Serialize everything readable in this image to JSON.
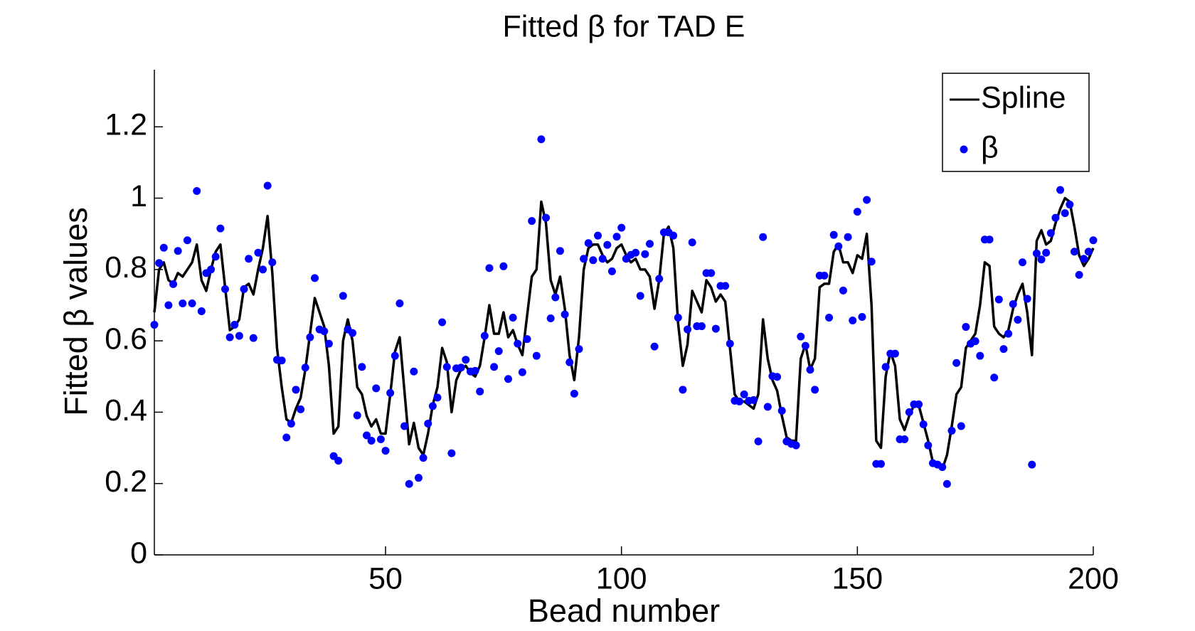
{
  "chart_data": {
    "type": "line",
    "title": "Fitted β for TAD E",
    "x_label": "Bead number",
    "y_label": "Fitted β values",
    "x": [
      1,
      2,
      3,
      4,
      5,
      6,
      7,
      8,
      9,
      10,
      11,
      12,
      13,
      14,
      15,
      16,
      17,
      18,
      19,
      20,
      21,
      22,
      23,
      24,
      25,
      26,
      27,
      28,
      29,
      30,
      31,
      32,
      33,
      34,
      35,
      36,
      37,
      38,
      39,
      40,
      41,
      42,
      43,
      44,
      45,
      46,
      47,
      48,
      49,
      50,
      51,
      52,
      53,
      54,
      55,
      56,
      57,
      58,
      59,
      60,
      61,
      62,
      63,
      64,
      65,
      66,
      67,
      68,
      69,
      70,
      71,
      72,
      73,
      74,
      75,
      76,
      77,
      78,
      79,
      80,
      81,
      82,
      83,
      84,
      85,
      86,
      87,
      88,
      89,
      90,
      91,
      92,
      93,
      94,
      95,
      96,
      97,
      98,
      99,
      100,
      101,
      102,
      103,
      104,
      105,
      106,
      107,
      108,
      109,
      110,
      111,
      112,
      113,
      114,
      115,
      116,
      117,
      118,
      119,
      120,
      121,
      122,
      123,
      124,
      125,
      126,
      127,
      128,
      129,
      130,
      131,
      132,
      133,
      134,
      135,
      136,
      137,
      138,
      139,
      140,
      141,
      142,
      143,
      144,
      145,
      146,
      147,
      148,
      149,
      150,
      151,
      152,
      153,
      154,
      155,
      156,
      157,
      158,
      159,
      160,
      161,
      162,
      163,
      164,
      165,
      166,
      167,
      168,
      169,
      170,
      171,
      172,
      173,
      174,
      175,
      176,
      177,
      178,
      179,
      180,
      181,
      182,
      183,
      184,
      185,
      186,
      187,
      188,
      189,
      190,
      191,
      192,
      193,
      194,
      195,
      196,
      197,
      198,
      199,
      200
    ],
    "series": [
      {
        "name": "Spline",
        "style": "line",
        "color": "#000000",
        "values": [
          0.68,
          0.8,
          0.82,
          0.77,
          0.76,
          0.79,
          0.78,
          0.8,
          0.82,
          0.87,
          0.77,
          0.74,
          0.8,
          0.85,
          0.87,
          0.75,
          0.63,
          0.64,
          0.66,
          0.75,
          0.76,
          0.73,
          0.8,
          0.86,
          0.95,
          0.79,
          0.58,
          0.47,
          0.38,
          0.37,
          0.41,
          0.44,
          0.52,
          0.62,
          0.72,
          0.68,
          0.64,
          0.53,
          0.34,
          0.36,
          0.6,
          0.66,
          0.6,
          0.47,
          0.45,
          0.39,
          0.36,
          0.38,
          0.34,
          0.34,
          0.45,
          0.57,
          0.61,
          0.46,
          0.31,
          0.37,
          0.3,
          0.28,
          0.34,
          0.42,
          0.47,
          0.58,
          0.54,
          0.4,
          0.49,
          0.52,
          0.53,
          0.51,
          0.5,
          0.53,
          0.61,
          0.7,
          0.62,
          0.62,
          0.68,
          0.61,
          0.63,
          0.59,
          0.56,
          0.67,
          0.78,
          0.8,
          0.99,
          0.93,
          0.77,
          0.73,
          0.78,
          0.69,
          0.56,
          0.49,
          0.61,
          0.8,
          0.86,
          0.87,
          0.87,
          0.84,
          0.82,
          0.83,
          0.86,
          0.87,
          0.84,
          0.82,
          0.83,
          0.8,
          0.8,
          0.78,
          0.69,
          0.77,
          0.9,
          0.92,
          0.86,
          0.65,
          0.53,
          0.59,
          0.74,
          0.71,
          0.68,
          0.77,
          0.75,
          0.71,
          0.73,
          0.71,
          0.58,
          0.45,
          0.43,
          0.43,
          0.42,
          0.41,
          0.45,
          0.66,
          0.55,
          0.49,
          0.46,
          0.39,
          0.33,
          0.32,
          0.32,
          0.55,
          0.59,
          0.52,
          0.55,
          0.75,
          0.76,
          0.76,
          0.85,
          0.87,
          0.82,
          0.82,
          0.79,
          0.84,
          0.83,
          0.9,
          0.7,
          0.32,
          0.3,
          0.5,
          0.57,
          0.53,
          0.38,
          0.35,
          0.39,
          0.42,
          0.42,
          0.37,
          0.32,
          0.26,
          0.26,
          0.24,
          0.28,
          0.36,
          0.45,
          0.47,
          0.58,
          0.6,
          0.62,
          0.7,
          0.82,
          0.81,
          0.64,
          0.62,
          0.61,
          0.63,
          0.69,
          0.73,
          0.76,
          0.68,
          0.56,
          0.88,
          0.91,
          0.87,
          0.88,
          0.93,
          0.97,
          1.0,
          0.99,
          0.92,
          0.84,
          0.81,
          0.83,
          0.86
        ]
      },
      {
        "name": "β",
        "style": "markers",
        "color": "#0000ff",
        "values": [
          0.645,
          0.818,
          0.861,
          0.7,
          0.759,
          0.852,
          0.705,
          0.882,
          0.705,
          1.02,
          0.683,
          0.79,
          0.8,
          0.836,
          0.915,
          0.745,
          0.61,
          0.645,
          0.614,
          0.745,
          0.83,
          0.608,
          0.847,
          0.8,
          1.035,
          0.82,
          0.547,
          0.545,
          0.329,
          0.368,
          0.463,
          0.408,
          0.525,
          0.61,
          0.776,
          0.632,
          0.627,
          0.592,
          0.277,
          0.264,
          0.726,
          0.632,
          0.622,
          0.391,
          0.527,
          0.335,
          0.32,
          0.467,
          0.324,
          0.292,
          0.454,
          0.558,
          0.705,
          0.361,
          0.199,
          0.514,
          0.216,
          0.272,
          0.368,
          0.417,
          0.441,
          0.652,
          0.527,
          0.285,
          0.523,
          0.525,
          0.547,
          0.514,
          0.516,
          0.458,
          0.614,
          0.804,
          0.527,
          0.571,
          0.809,
          0.493,
          0.665,
          0.592,
          0.512,
          0.605,
          0.936,
          0.558,
          1.165,
          0.945,
          0.663,
          0.722,
          0.852,
          0.674,
          0.54,
          0.452,
          0.577,
          0.83,
          0.874,
          0.826,
          0.895,
          0.83,
          0.869,
          0.795,
          0.892,
          0.917,
          0.83,
          0.841,
          0.847,
          0.726,
          0.843,
          0.872,
          0.584,
          0.774,
          0.904,
          0.904,
          0.895,
          0.665,
          0.463,
          0.632,
          0.876,
          0.641,
          0.641,
          0.79,
          0.79,
          0.634,
          0.754,
          0.754,
          0.592,
          0.432,
          0.43,
          0.45,
          0.432,
          0.434,
          0.318,
          0.891,
          0.415,
          0.501,
          0.499,
          0.404,
          0.318,
          0.311,
          0.307,
          0.612,
          0.586,
          0.519,
          0.463,
          0.783,
          0.783,
          0.665,
          0.897,
          0.865,
          0.741,
          0.891,
          0.657,
          0.962,
          0.667,
          0.995,
          0.822,
          0.255,
          0.255,
          0.527,
          0.564,
          0.564,
          0.324,
          0.324,
          0.4,
          0.422,
          0.422,
          0.366,
          0.307,
          0.257,
          0.253,
          0.246,
          0.199,
          0.348,
          0.538,
          0.361,
          0.639,
          0.592,
          0.599,
          0.558,
          0.884,
          0.884,
          0.497,
          0.716,
          0.577,
          0.62,
          0.703,
          0.659,
          0.82,
          0.718,
          0.253,
          0.845,
          0.828,
          0.847,
          0.902,
          0.945,
          1.023,
          0.958,
          0.982,
          0.85,
          0.785,
          0.83,
          0.85,
          0.882
        ]
      }
    ],
    "xlim": [
      1,
      200
    ],
    "xticks": [
      50,
      100,
      150,
      200
    ],
    "ylim": [
      0,
      1.36
    ],
    "yticks": [
      0,
      0.2,
      0.4,
      0.6,
      0.8,
      1,
      1.2
    ],
    "legend": "upper right",
    "grid": false
  }
}
